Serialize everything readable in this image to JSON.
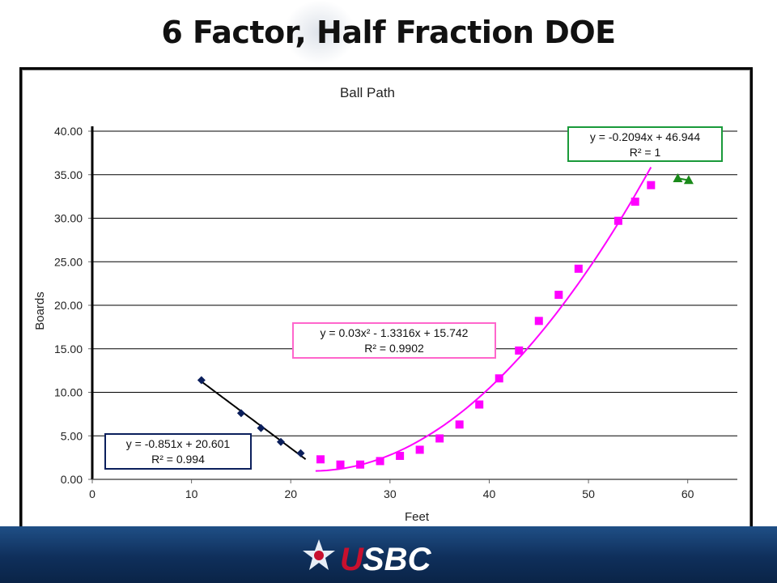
{
  "slide": {
    "title": "6 Factor, Half Fraction DOE",
    "logo_text": "USBC"
  },
  "colors": {
    "footer": "#163d6e",
    "series_left": "#0b1f5c",
    "series_middle": "#ff00ff",
    "series_right": "#1a8a1a",
    "gridline": "#000000"
  },
  "chart_data": {
    "type": "scatter",
    "title": "Ball Path",
    "xlabel": "Feet",
    "ylabel": "Boards",
    "xlim": [
      0,
      65
    ],
    "ylim": [
      0,
      40
    ],
    "x_ticks": [
      "0",
      "10",
      "20",
      "30",
      "40",
      "50",
      "60"
    ],
    "y_ticks": [
      "0.00",
      "5.00",
      "10.00",
      "15.00",
      "20.00",
      "25.00",
      "30.00",
      "35.00",
      "40.00"
    ],
    "grid": true,
    "series": [
      {
        "marker": "diamond",
        "color": "#0b1f5c",
        "points": [
          [
            11,
            11.4
          ],
          [
            15,
            7.6
          ],
          [
            17,
            5.9
          ],
          [
            19,
            4.3
          ],
          [
            21,
            3.0
          ]
        ],
        "trendline": {
          "kind": "linear",
          "coeffs": [
            -0.851,
            20.601
          ],
          "range": [
            11,
            21.5
          ]
        },
        "equation": "y = -0.851x + 20.601",
        "r2": "R² = 0.994"
      },
      {
        "marker": "square",
        "color": "#ff00ff",
        "points": [
          [
            23,
            2.3
          ],
          [
            25,
            1.7
          ],
          [
            27,
            1.7
          ],
          [
            29,
            2.1
          ],
          [
            31,
            2.7
          ],
          [
            33,
            3.4
          ],
          [
            35,
            4.7
          ],
          [
            37,
            6.3
          ],
          [
            39,
            8.6
          ],
          [
            41,
            11.6
          ],
          [
            43,
            14.8
          ],
          [
            45,
            18.2
          ],
          [
            47,
            21.2
          ],
          [
            49,
            24.2
          ],
          [
            53,
            29.7
          ],
          [
            54.7,
            31.9
          ],
          [
            56.3,
            33.8
          ]
        ],
        "trendline": {
          "kind": "quadratic",
          "coeffs": [
            0.03,
            -1.3316,
            15.742
          ],
          "range": [
            22.5,
            56.3
          ]
        },
        "equation": "y = 0.03x² - 1.3316x + 15.742",
        "r2": "R² = 0.9902"
      },
      {
        "marker": "triangle",
        "color": "#1a8a1a",
        "points": [
          [
            59,
            34.6
          ],
          [
            60.1,
            34.4
          ]
        ],
        "trendline": {
          "kind": "linear",
          "coeffs": [
            -0.2094,
            46.944
          ],
          "range": [
            59,
            60.1
          ]
        },
        "equation": "y = -0.2094x + 46.944",
        "r2": "R² = 1"
      }
    ]
  }
}
